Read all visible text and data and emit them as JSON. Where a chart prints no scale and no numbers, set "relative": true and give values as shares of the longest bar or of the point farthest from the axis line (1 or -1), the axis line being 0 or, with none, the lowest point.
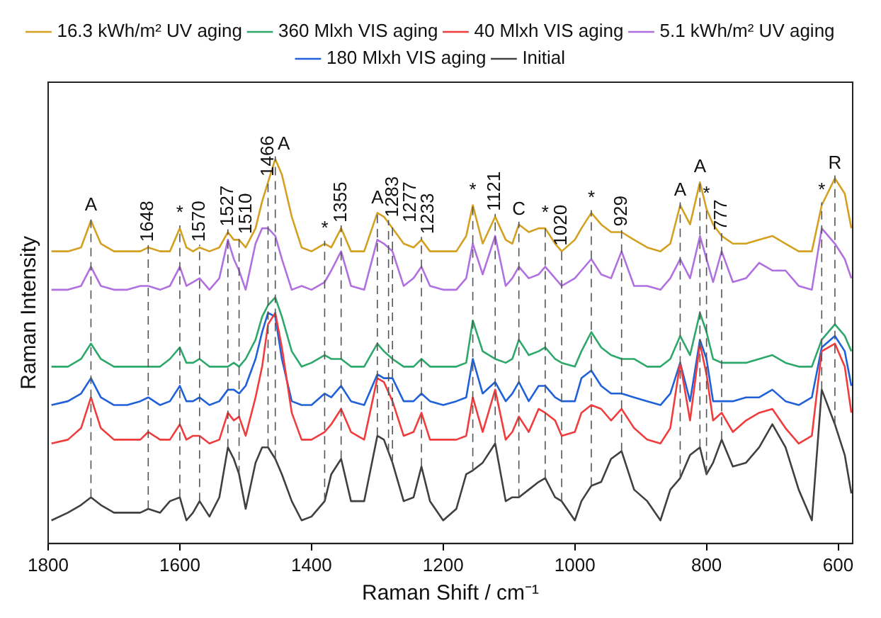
{
  "chart_data": {
    "type": "line",
    "relative": true,
    "xlabel": "Raman Shift / cm⁻¹",
    "ylabel": "Raman Intensity",
    "xlim": [
      1800,
      578
    ],
    "xticks": [
      1800,
      1600,
      1400,
      1200,
      1000,
      800,
      600
    ],
    "grid": false,
    "legend": "top",
    "marker": "none",
    "line_style": "solid",
    "x": [
      1795,
      1770,
      1750,
      1735,
      1720,
      1700,
      1680,
      1660,
      1648,
      1630,
      1615,
      1600,
      1590,
      1580,
      1570,
      1555,
      1540,
      1527,
      1518,
      1510,
      1500,
      1485,
      1475,
      1466,
      1455,
      1445,
      1430,
      1415,
      1400,
      1380,
      1370,
      1355,
      1340,
      1320,
      1300,
      1290,
      1277,
      1260,
      1245,
      1233,
      1220,
      1200,
      1180,
      1165,
      1155,
      1140,
      1121,
      1105,
      1095,
      1085,
      1070,
      1055,
      1045,
      1030,
      1020,
      1000,
      990,
      975,
      960,
      945,
      929,
      910,
      890,
      870,
      855,
      840,
      825,
      810,
      800,
      790,
      777,
      760,
      740,
      720,
      700,
      680,
      660,
      640,
      625,
      605,
      590,
      580
    ],
    "series": [
      {
        "name": "16.3 kWh/m² UV aging",
        "color": "#d4a020",
        "values": [
          0.76,
          0.76,
          0.77,
          0.84,
          0.78,
          0.76,
          0.76,
          0.76,
          0.77,
          0.76,
          0.76,
          0.82,
          0.77,
          0.76,
          0.77,
          0.76,
          0.77,
          0.81,
          0.79,
          0.79,
          0.77,
          0.82,
          0.89,
          0.94,
          1.0,
          0.96,
          0.85,
          0.77,
          0.76,
          0.78,
          0.77,
          0.82,
          0.76,
          0.76,
          0.86,
          0.85,
          0.82,
          0.78,
          0.77,
          0.79,
          0.76,
          0.76,
          0.76,
          0.8,
          0.88,
          0.78,
          0.85,
          0.79,
          0.78,
          0.83,
          0.81,
          0.82,
          0.82,
          0.78,
          0.76,
          0.79,
          0.82,
          0.86,
          0.83,
          0.81,
          0.81,
          0.79,
          0.77,
          0.76,
          0.78,
          0.88,
          0.83,
          0.94,
          0.87,
          0.83,
          0.8,
          0.78,
          0.78,
          0.79,
          0.8,
          0.78,
          0.76,
          0.76,
          0.88,
          0.95,
          0.91,
          0.82
        ]
      },
      {
        "name": "360 Mlxh VIS aging",
        "color": "#2ea86a",
        "values": [
          0.46,
          0.46,
          0.48,
          0.52,
          0.48,
          0.46,
          0.46,
          0.46,
          0.46,
          0.46,
          0.48,
          0.51,
          0.47,
          0.47,
          0.48,
          0.46,
          0.46,
          0.46,
          0.47,
          0.46,
          0.48,
          0.53,
          0.59,
          0.62,
          0.64,
          0.59,
          0.5,
          0.46,
          0.47,
          0.49,
          0.48,
          0.48,
          0.46,
          0.46,
          0.52,
          0.5,
          0.48,
          0.46,
          0.46,
          0.48,
          0.46,
          0.46,
          0.46,
          0.47,
          0.58,
          0.5,
          0.48,
          0.47,
          0.48,
          0.53,
          0.49,
          0.5,
          0.51,
          0.48,
          0.47,
          0.46,
          0.5,
          0.55,
          0.51,
          0.49,
          0.48,
          0.48,
          0.46,
          0.46,
          0.48,
          0.54,
          0.49,
          0.6,
          0.55,
          0.48,
          0.47,
          0.47,
          0.47,
          0.48,
          0.49,
          0.47,
          0.46,
          0.46,
          0.53,
          0.57,
          0.54,
          0.5
        ]
      },
      {
        "name": "40 Mlxh VIS aging",
        "color": "#f03c3c",
        "values": [
          0.26,
          0.27,
          0.3,
          0.38,
          0.3,
          0.27,
          0.27,
          0.27,
          0.29,
          0.27,
          0.27,
          0.31,
          0.27,
          0.28,
          0.28,
          0.26,
          0.27,
          0.34,
          0.32,
          0.33,
          0.28,
          0.38,
          0.46,
          0.57,
          0.6,
          0.51,
          0.34,
          0.27,
          0.27,
          0.29,
          0.31,
          0.35,
          0.29,
          0.27,
          0.43,
          0.42,
          0.37,
          0.28,
          0.29,
          0.34,
          0.27,
          0.27,
          0.27,
          0.28,
          0.38,
          0.29,
          0.4,
          0.27,
          0.29,
          0.33,
          0.29,
          0.35,
          0.34,
          0.32,
          0.28,
          0.29,
          0.34,
          0.36,
          0.35,
          0.32,
          0.35,
          0.3,
          0.27,
          0.26,
          0.3,
          0.47,
          0.32,
          0.52,
          0.44,
          0.32,
          0.34,
          0.29,
          0.32,
          0.34,
          0.35,
          0.3,
          0.26,
          0.28,
          0.5,
          0.52,
          0.46,
          0.34
        ]
      },
      {
        "name": "5.1 kWh/m² UV aging",
        "color": "#b070e0",
        "values": [
          0.66,
          0.66,
          0.67,
          0.72,
          0.67,
          0.66,
          0.66,
          0.67,
          0.67,
          0.66,
          0.67,
          0.72,
          0.67,
          0.68,
          0.69,
          0.66,
          0.69,
          0.79,
          0.74,
          0.71,
          0.66,
          0.78,
          0.82,
          0.82,
          0.8,
          0.74,
          0.66,
          0.67,
          0.66,
          0.68,
          0.71,
          0.76,
          0.67,
          0.66,
          0.79,
          0.78,
          0.76,
          0.67,
          0.69,
          0.72,
          0.67,
          0.66,
          0.66,
          0.69,
          0.78,
          0.7,
          0.8,
          0.67,
          0.69,
          0.72,
          0.69,
          0.7,
          0.72,
          0.69,
          0.67,
          0.69,
          0.71,
          0.74,
          0.7,
          0.69,
          0.76,
          0.67,
          0.67,
          0.66,
          0.69,
          0.74,
          0.69,
          0.8,
          0.74,
          0.68,
          0.76,
          0.68,
          0.69,
          0.73,
          0.71,
          0.71,
          0.67,
          0.66,
          0.82,
          0.78,
          0.74,
          0.69
        ]
      },
      {
        "name": "180 Mlxh VIS aging",
        "color": "#2060d8",
        "values": [
          0.36,
          0.37,
          0.39,
          0.43,
          0.38,
          0.36,
          0.36,
          0.37,
          0.38,
          0.36,
          0.37,
          0.41,
          0.37,
          0.37,
          0.38,
          0.36,
          0.37,
          0.4,
          0.4,
          0.39,
          0.41,
          0.48,
          0.55,
          0.6,
          0.59,
          0.48,
          0.37,
          0.36,
          0.36,
          0.39,
          0.38,
          0.41,
          0.37,
          0.36,
          0.44,
          0.43,
          0.43,
          0.37,
          0.37,
          0.39,
          0.37,
          0.36,
          0.37,
          0.38,
          0.48,
          0.39,
          0.42,
          0.37,
          0.39,
          0.42,
          0.37,
          0.41,
          0.41,
          0.38,
          0.37,
          0.37,
          0.43,
          0.45,
          0.41,
          0.39,
          0.39,
          0.38,
          0.37,
          0.36,
          0.39,
          0.47,
          0.37,
          0.53,
          0.48,
          0.37,
          0.37,
          0.37,
          0.38,
          0.38,
          0.4,
          0.37,
          0.36,
          0.38,
          0.51,
          0.54,
          0.5,
          0.41
        ]
      },
      {
        "name": "Initial",
        "color": "#404040",
        "values": [
          0.06,
          0.08,
          0.1,
          0.12,
          0.1,
          0.08,
          0.08,
          0.08,
          0.09,
          0.08,
          0.11,
          0.12,
          0.06,
          0.08,
          0.11,
          0.07,
          0.12,
          0.25,
          0.22,
          0.18,
          0.09,
          0.21,
          0.25,
          0.25,
          0.22,
          0.18,
          0.11,
          0.06,
          0.07,
          0.11,
          0.18,
          0.22,
          0.11,
          0.11,
          0.28,
          0.27,
          0.21,
          0.11,
          0.12,
          0.2,
          0.11,
          0.06,
          0.09,
          0.18,
          0.19,
          0.21,
          0.26,
          0.11,
          0.12,
          0.12,
          0.14,
          0.16,
          0.17,
          0.12,
          0.11,
          0.06,
          0.11,
          0.15,
          0.16,
          0.22,
          0.24,
          0.14,
          0.11,
          0.06,
          0.14,
          0.17,
          0.23,
          0.25,
          0.18,
          0.21,
          0.27,
          0.2,
          0.21,
          0.25,
          0.31,
          0.25,
          0.14,
          0.06,
          0.4,
          0.31,
          0.23,
          0.13
        ]
      }
    ],
    "ref_lines": [
      {
        "axis": "x",
        "value": 1735,
        "label": "A",
        "line_style": "dashed"
      },
      {
        "axis": "x",
        "value": 1648,
        "label": "1648",
        "line_style": "dashed"
      },
      {
        "axis": "x",
        "value": 1600,
        "label": "*",
        "line_style": "dashed"
      },
      {
        "axis": "x",
        "value": 1570,
        "label": "1570",
        "line_style": "dashed"
      },
      {
        "axis": "x",
        "value": 1527,
        "label": "1527",
        "line_style": "dashed"
      },
      {
        "axis": "x",
        "value": 1510,
        "label": "1510",
        "line_style": "dashed"
      },
      {
        "axis": "x",
        "value": 1466,
        "label": "1466",
        "line_style": "dashed"
      },
      {
        "axis": "x",
        "value": 1455,
        "label": "A",
        "line_style": "dashed"
      },
      {
        "axis": "x",
        "value": 1380,
        "label": "*",
        "line_style": "dashed"
      },
      {
        "axis": "x",
        "value": 1355,
        "label": "1355",
        "line_style": "dashed"
      },
      {
        "axis": "x",
        "value": 1300,
        "label": "A",
        "line_style": "dashed"
      },
      {
        "axis": "x",
        "value": 1283,
        "label": "1283",
        "line_style": "dashed"
      },
      {
        "axis": "x",
        "value": 1277,
        "label": "1277",
        "line_style": "dashed"
      },
      {
        "axis": "x",
        "value": 1233,
        "label": "1233",
        "line_style": "dashed"
      },
      {
        "axis": "x",
        "value": 1155,
        "label": "*",
        "line_style": "dashed"
      },
      {
        "axis": "x",
        "value": 1121,
        "label": "1121",
        "line_style": "dashed"
      },
      {
        "axis": "x",
        "value": 1085,
        "label": "C",
        "line_style": "dashed"
      },
      {
        "axis": "x",
        "value": 1045,
        "label": "*",
        "line_style": "dashed"
      },
      {
        "axis": "x",
        "value": 1020,
        "label": "1020",
        "line_style": "dashed"
      },
      {
        "axis": "x",
        "value": 975,
        "label": "*",
        "line_style": "dashed"
      },
      {
        "axis": "x",
        "value": 929,
        "label": "929",
        "line_style": "dashed"
      },
      {
        "axis": "x",
        "value": 840,
        "label": "A",
        "line_style": "dashed"
      },
      {
        "axis": "x",
        "value": 810,
        "label": "A",
        "line_style": "dashed"
      },
      {
        "axis": "x",
        "value": 800,
        "label": "*",
        "line_style": "dashed"
      },
      {
        "axis": "x",
        "value": 777,
        "label": "777",
        "line_style": "dashed"
      },
      {
        "axis": "x",
        "value": 625,
        "label": "*",
        "line_style": "dashed"
      },
      {
        "axis": "x",
        "value": 605,
        "label": "R",
        "line_style": "dashed"
      }
    ]
  }
}
